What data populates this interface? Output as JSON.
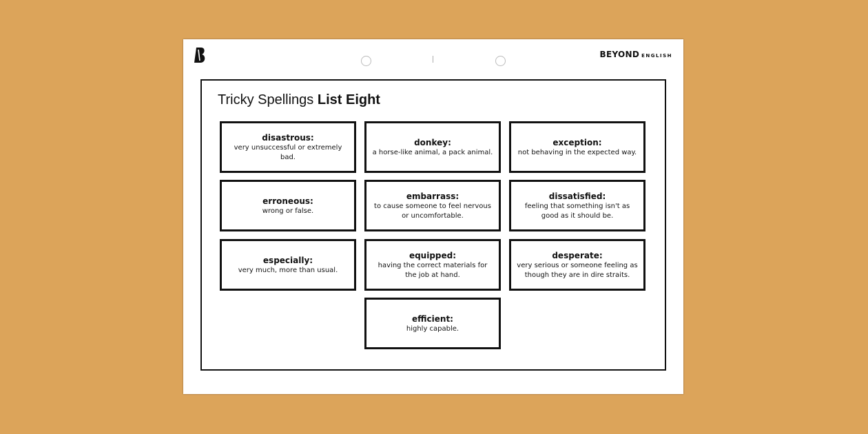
{
  "header": {
    "brand": "BEYOND",
    "brand_sub": "ENGLISH",
    "logo": "beyond-b-logo"
  },
  "title": {
    "regular": "Tricky Spellings",
    "bold": "List Eight"
  },
  "cards": [
    {
      "word": "disastrous:",
      "definition": "very unsuccessful or extremely bad."
    },
    {
      "word": "donkey:",
      "definition": "a horse-like animal, a pack animal."
    },
    {
      "word": "exception:",
      "definition": "not behaving in the expected way."
    },
    {
      "word": "erroneous:",
      "definition": "wrong or false."
    },
    {
      "word": "embarrass:",
      "definition": "to cause someone to feel nervous or uncomfortable."
    },
    {
      "word": "dissatisfied:",
      "definition": "feeling that something isn't as good as it should be."
    },
    {
      "word": "especially:",
      "definition": "very much, more than usual."
    },
    {
      "word": "equipped:",
      "definition": "having the correct materials for the job at hand."
    },
    {
      "word": "desperate:",
      "definition": "very serious or someone feeling as though they are in dire straits."
    },
    {
      "word": "efficient:",
      "definition": "highly capable."
    }
  ],
  "colors": {
    "background": "#dca45a",
    "sheet": "#ffffff",
    "border": "#111111"
  }
}
